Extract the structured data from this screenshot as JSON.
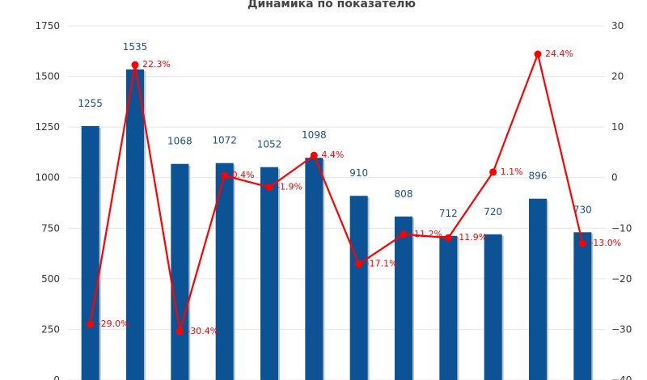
{
  "chart_data": {
    "type": "bar",
    "title": "Динамика по показателю",
    "categories": [
      "",
      "",
      "",
      "",
      "",
      "",
      "",
      "",
      "",
      "",
      "",
      ""
    ],
    "series": [
      {
        "type": "bar",
        "values": [
          1255,
          1535,
          1068,
          1072,
          1052,
          1098,
          910,
          808,
          712,
          720,
          896,
          730
        ],
        "labels": [
          "1255",
          "1535",
          "1068",
          "1072",
          "1052",
          "1098",
          "910",
          "808",
          "712",
          "720",
          "896",
          "730"
        ],
        "axis": "left",
        "color": "#0b5394"
      },
      {
        "type": "line",
        "values": [
          -29.0,
          22.3,
          -30.4,
          0.4,
          -1.9,
          4.4,
          -17.1,
          -11.2,
          -11.9,
          1.1,
          24.4,
          -13.0
        ],
        "labels": [
          "-29.0%",
          "22.3%",
          "-30.4%",
          "0.4%",
          "-1.9%",
          "4.4%",
          "-17.1%",
          "-11.2%",
          "-11.9%",
          "1.1%",
          "24.4%",
          "-13.0%"
        ],
        "axis": "right",
        "color": "#ff0000"
      }
    ],
    "ylim": [
      0,
      1750
    ],
    "yticks": [
      "0",
      "250",
      "500",
      "750",
      "1000",
      "1250",
      "1500",
      "1750"
    ],
    "y2lim": [
      -40,
      30
    ],
    "y2ticks": [
      "−40",
      "−30",
      "−20",
      "−10",
      "0",
      "10",
      "20",
      "30"
    ],
    "grid": true,
    "colors": {
      "bar": "#0b5394",
      "bar_shadow": "#b9c3cf",
      "line": "#ff0000",
      "grid": "#e6e6e6"
    }
  }
}
